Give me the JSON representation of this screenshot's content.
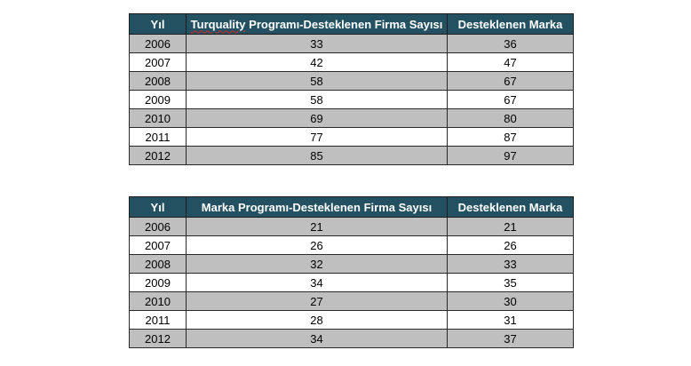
{
  "tables": [
    {
      "headers": {
        "year": "Yıl",
        "firm_prefix": "Turquality",
        "firm_rest": " Programı-Desteklenen Firma Sayısı",
        "brand": "Desteklenen Marka"
      },
      "rows": [
        {
          "year": "2006",
          "firm": "33",
          "brand": "36"
        },
        {
          "year": "2007",
          "firm": "42",
          "brand": "47"
        },
        {
          "year": "2008",
          "firm": "58",
          "brand": "67"
        },
        {
          "year": "2009",
          "firm": "58",
          "brand": "67"
        },
        {
          "year": "2010",
          "firm": "69",
          "brand": "80"
        },
        {
          "year": "2011",
          "firm": "77",
          "brand": "87"
        },
        {
          "year": "2012",
          "firm": "85",
          "brand": "97"
        }
      ]
    },
    {
      "headers": {
        "year": "Yıl",
        "firm": "Marka Programı-Desteklenen Firma Sayısı",
        "brand": "Desteklenen Marka"
      },
      "rows": [
        {
          "year": "2006",
          "firm": "21",
          "brand": "21"
        },
        {
          "year": "2007",
          "firm": "26",
          "brand": "26"
        },
        {
          "year": "2008",
          "firm": "32",
          "brand": "33"
        },
        {
          "year": "2009",
          "firm": "34",
          "brand": "35"
        },
        {
          "year": "2010",
          "firm": "27",
          "brand": "30"
        },
        {
          "year": "2011",
          "firm": "28",
          "brand": "31"
        },
        {
          "year": "2012",
          "firm": "34",
          "brand": "37"
        }
      ]
    }
  ],
  "colors": {
    "header_bg": "#245162",
    "header_text": "#ffffff",
    "shaded_row": "#bfbfbf",
    "plain_row": "#ffffff",
    "spellcheck_underline": "#d22a2a"
  }
}
